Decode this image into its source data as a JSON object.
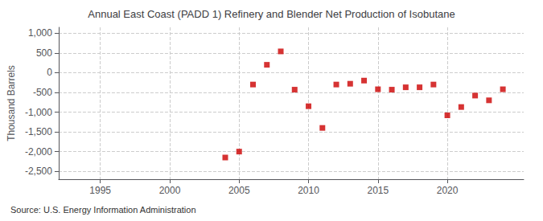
{
  "chart_data": {
    "type": "scatter",
    "title": "Annual East Coast (PADD 1) Refinery and Blender Net Production of Isobutane",
    "ylabel": "Thousand Barrels",
    "source": "Source: U.S. Energy Information Administration",
    "x": [
      2004,
      2005,
      2006,
      2007,
      2008,
      2009,
      2010,
      2011,
      2012,
      2013,
      2014,
      2015,
      2016,
      2017,
      2018,
      2019,
      2020,
      2021,
      2022,
      2023,
      2024
    ],
    "values": [
      -2150,
      -2000,
      -300,
      200,
      540,
      -430,
      -850,
      -1400,
      -300,
      -280,
      -200,
      -420,
      -430,
      -370,
      -370,
      -300,
      -1080,
      -870,
      -580,
      -700,
      -420
    ],
    "color": "#cc0000",
    "marker": "square",
    "xlim": [
      1992,
      2025.5
    ],
    "ylim": [
      -2700,
      1150
    ],
    "xticks": [
      1995,
      2000,
      2005,
      2010,
      2015,
      2020
    ],
    "yticks": [
      {
        "value": -2500,
        "label": "-2,500"
      },
      {
        "value": -2000,
        "label": "-2,000"
      },
      {
        "value": -1500,
        "label": "-1,500"
      },
      {
        "value": -1000,
        "label": "-1,000"
      },
      -500,
      0,
      500,
      {
        "value": 1000,
        "label": "1,000"
      }
    ],
    "grid": true
  }
}
